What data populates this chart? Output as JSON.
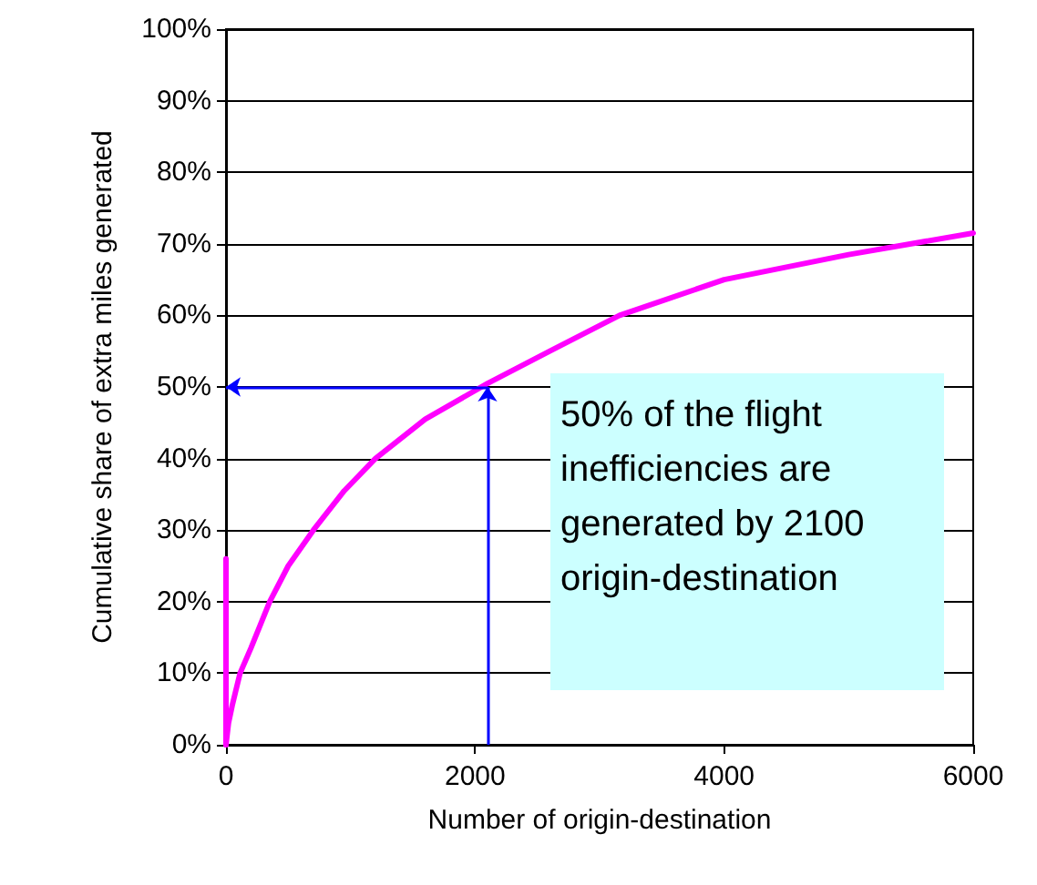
{
  "chart_data": {
    "type": "line",
    "xlabel": "Number of origin-destination",
    "ylabel": "Cumulative share of extra miles generated",
    "xlim": [
      0,
      6000
    ],
    "xticks": [
      0,
      2000,
      4000,
      6000
    ],
    "ylim": [
      0,
      100
    ],
    "yticks": [
      {
        "value": 0,
        "label": "0%"
      },
      {
        "value": 10,
        "label": "10%"
      },
      {
        "value": 20,
        "label": "20%"
      },
      {
        "value": 30,
        "label": "30%"
      },
      {
        "value": 40,
        "label": "40%"
      },
      {
        "value": 50,
        "label": "50%"
      },
      {
        "value": 60,
        "label": "60%"
      },
      {
        "value": 70,
        "label": "70%"
      },
      {
        "value": 80,
        "label": "80%"
      },
      {
        "value": 90,
        "label": "90%"
      },
      {
        "value": 100,
        "label": "100%"
      }
    ],
    "series": [
      {
        "color": "#ff00ff",
        "x": [
          0,
          20,
          50,
          113,
          200,
          351,
          500,
          702,
          950,
          1200,
          1600,
          2100,
          2600,
          3160,
          4000,
          5000,
          6000
        ],
        "values": [
          0,
          3,
          5.5,
          10,
          13.5,
          20,
          25,
          30,
          35.5,
          40,
          45.5,
          50.5,
          55,
          60,
          65,
          68.5,
          71.5
        ]
      },
      {
        "color": "#ff00ff",
        "x": [
          0,
          0
        ],
        "values": [
          0,
          26
        ]
      }
    ],
    "annotations": [
      {
        "text": "50% of the flight inefficiencies are generated by 2100 origin-destination",
        "x": 2100,
        "y": 50
      }
    ],
    "grid": "y",
    "marker": "none",
    "line_style": "solid"
  }
}
